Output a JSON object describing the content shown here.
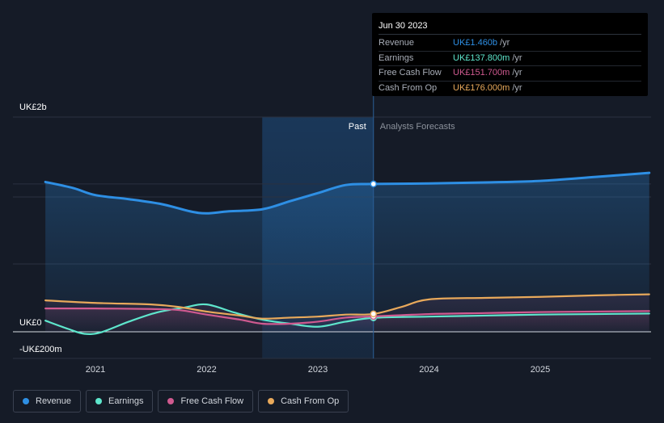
{
  "chart_data": {
    "type": "line",
    "title": "",
    "xlabel": "",
    "ylabel": "",
    "currency_unit": "UK£m",
    "ylim": [
      -200,
      2000
    ],
    "y_tick_labels": [
      "UK£2b",
      "UK£0",
      "-UK£200m"
    ],
    "y_tick_values": [
      2000,
      0,
      -200
    ],
    "x_tick_labels": [
      "2021",
      "2022",
      "2023",
      "2024",
      "2025"
    ],
    "x_tick_values": [
      2021,
      2022,
      2023,
      2024,
      2025
    ],
    "xlim": [
      2020.3,
      2025.98
    ],
    "past_region": [
      2022.5,
      2023.5
    ],
    "past_label": "Past",
    "forecast_label": "Analysts Forecasts",
    "series": [
      {
        "name": "Revenue",
        "color": "#2e8fe4",
        "x": [
          2020.55,
          2020.8,
          2021.0,
          2021.3,
          2021.6,
          2021.85,
          2022.0,
          2022.2,
          2022.5,
          2022.75,
          2023.0,
          2023.25,
          2023.5,
          2024.0,
          2024.5,
          2025.0,
          2025.5,
          2025.98
        ],
        "values": [
          1480,
          1420,
          1350,
          1310,
          1260,
          1190,
          1170,
          1190,
          1210,
          1290,
          1370,
          1450,
          1460,
          1465,
          1475,
          1490,
          1530,
          1570
        ]
      },
      {
        "name": "Earnings",
        "color": "#5ee6cc",
        "x": [
          2020.55,
          2020.75,
          2020.9,
          2021.05,
          2021.3,
          2021.55,
          2021.8,
          2022.0,
          2022.25,
          2022.5,
          2022.75,
          2023.0,
          2023.25,
          2023.5,
          2024.0,
          2024.5,
          2025.0,
          2025.5,
          2025.98
        ],
        "values": [
          110,
          30,
          -20,
          -5,
          100,
          190,
          240,
          270,
          190,
          120,
          80,
          50,
          100,
          137.8,
          150,
          160,
          170,
          175,
          180
        ]
      },
      {
        "name": "Free Cash Flow",
        "color": "#d05a90",
        "x": [
          2020.55,
          2021.0,
          2021.5,
          2021.75,
          2022.0,
          2022.3,
          2022.5,
          2022.75,
          2023.0,
          2023.25,
          2023.5,
          2024.0,
          2024.5,
          2025.0,
          2025.5,
          2025.98
        ],
        "values": [
          230,
          230,
          225,
          215,
          170,
          120,
          80,
          80,
          100,
          140,
          151.7,
          175,
          185,
          195,
          200,
          205
        ]
      },
      {
        "name": "Cash From Op",
        "color": "#e8a95b",
        "x": [
          2020.55,
          2021.0,
          2021.5,
          2021.75,
          2022.0,
          2022.3,
          2022.5,
          2022.75,
          2023.0,
          2023.25,
          2023.5,
          2023.75,
          2024.0,
          2024.5,
          2025.0,
          2025.5,
          2025.98
        ],
        "values": [
          310,
          285,
          270,
          245,
          200,
          160,
          130,
          140,
          150,
          170,
          176,
          245,
          320,
          335,
          345,
          360,
          370
        ]
      }
    ],
    "tooltip": {
      "date": "Jun 30 2023",
      "rows": [
        {
          "label": "Revenue",
          "value": "UK£1.460b",
          "unit": "/yr",
          "color": "#2e8fe4"
        },
        {
          "label": "Earnings",
          "value": "UK£137.800m",
          "unit": "/yr",
          "color": "#5ee6cc"
        },
        {
          "label": "Free Cash Flow",
          "value": "UK£151.700m",
          "unit": "/yr",
          "color": "#d05a90"
        },
        {
          "label": "Cash From Op",
          "value": "UK£176.000m",
          "unit": "/yr",
          "color": "#e8a95b"
        }
      ]
    },
    "legend": [
      {
        "label": "Revenue",
        "color": "#2e8fe4"
      },
      {
        "label": "Earnings",
        "color": "#5ee6cc"
      },
      {
        "label": "Free Cash Flow",
        "color": "#d05a90"
      },
      {
        "label": "Cash From Op",
        "color": "#e8a95b"
      }
    ]
  }
}
